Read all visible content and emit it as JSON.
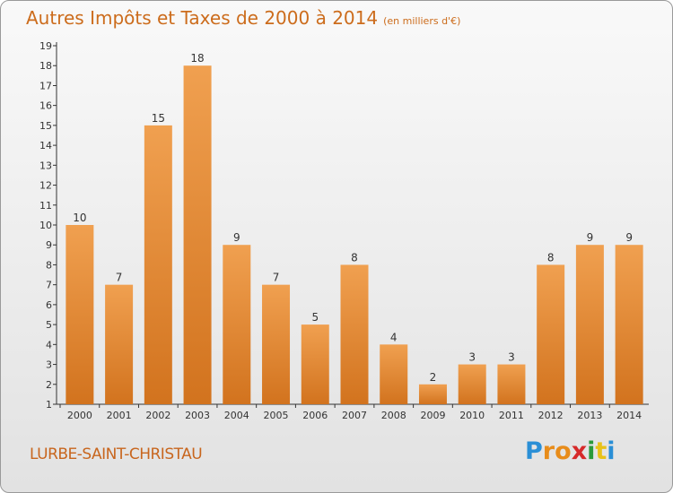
{
  "chart_data": {
    "type": "bar",
    "title": "Autres Impôts et Taxes de 2000 à 2014",
    "unit": "(en milliers d'€)",
    "categories": [
      "2000",
      "2001",
      "2002",
      "2003",
      "2004",
      "2005",
      "2006",
      "2007",
      "2008",
      "2009",
      "2010",
      "2011",
      "2012",
      "2013",
      "2014"
    ],
    "values": [
      10,
      7,
      15,
      18,
      9,
      7,
      5,
      8,
      4,
      2,
      3,
      3,
      8,
      9,
      9
    ],
    "ylim": [
      1,
      19
    ],
    "yticks": [
      1,
      2,
      3,
      4,
      5,
      6,
      7,
      8,
      9,
      10,
      11,
      12,
      13,
      14,
      15,
      16,
      17,
      18,
      19
    ],
    "bar_color": "#f0a050",
    "bar_color_dark": "#d2731e"
  },
  "place_name": "LURBE-SAINT-CHRISTAU",
  "logo": {
    "letters": [
      "P",
      "r",
      "o",
      "x",
      "i",
      "t",
      "i"
    ],
    "colors": [
      "#2a8fd6",
      "#e88c1a",
      "#e88c1a",
      "#d62a2a",
      "#2a9a3a",
      "#e8c21a",
      "#2a8fd6"
    ]
  }
}
